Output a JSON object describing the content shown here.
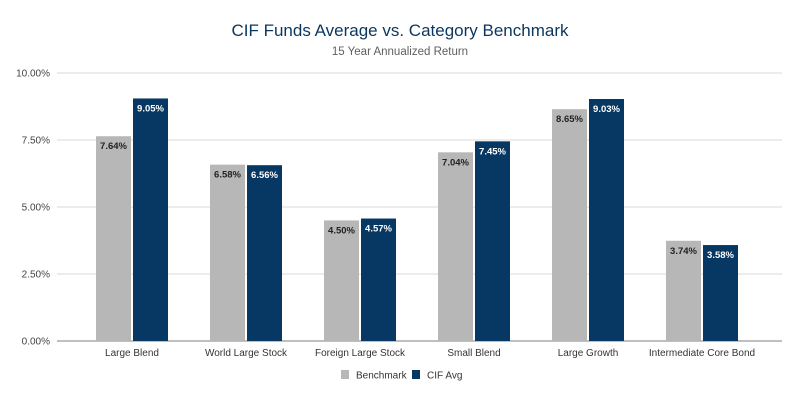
{
  "chart_data": {
    "type": "bar",
    "title": "CIF Funds Average vs. Category Benchmark",
    "subtitle": "15 Year Annualized Return",
    "xlabel": "",
    "ylabel": "",
    "categories": [
      "Large Blend",
      "World Large Stock",
      "Foreign Large Stock",
      "Small Blend",
      "Large Growth",
      "Intermediate Core Bond"
    ],
    "series": [
      {
        "name": "Benchmark",
        "color": "#b7b7b7",
        "values": [
          7.64,
          6.58,
          4.5,
          7.04,
          8.65,
          3.74
        ],
        "labels": [
          "7.64%",
          "6.58%",
          "4.50%",
          "7.04%",
          "8.65%",
          "3.74%"
        ]
      },
      {
        "name": "CIF Avg",
        "color": "#073763",
        "values": [
          9.05,
          6.56,
          4.57,
          7.45,
          9.03,
          3.58
        ],
        "labels": [
          "9.05%",
          "6.56%",
          "4.57%",
          "7.45%",
          "9.03%",
          "3.58%"
        ]
      }
    ],
    "ylim": [
      0,
      10
    ],
    "yticks": [
      0,
      2.5,
      5,
      7.5,
      10
    ],
    "ytick_labels": [
      "0.00%",
      "2.50%",
      "5.00%",
      "7.50%",
      "10.00%"
    ],
    "grid": true,
    "legend": "bottom"
  }
}
